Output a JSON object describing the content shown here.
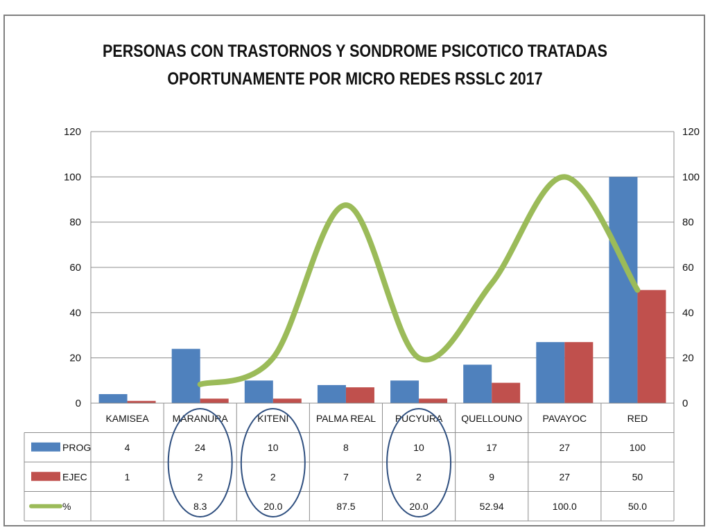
{
  "chart_data": {
    "type": "bar",
    "title": [
      "PERSONAS CON TRASTORNOS Y SONDROME PSICOTICO TRATADAS",
      "OPORTUNAMENTE POR MICRO REDES RSSLC 2017"
    ],
    "categories": [
      "KAMISEA",
      "MARANURA",
      "KITENI",
      "PALMA REAL",
      "PUCYURA",
      "QUELLOUNO",
      "PAVAYOC",
      "RED"
    ],
    "series": [
      {
        "name": "PROG",
        "kind": "bar",
        "color": "#4f81bd",
        "values": [
          4,
          24,
          10,
          8,
          10,
          17,
          27,
          100
        ],
        "labels": [
          "4",
          "24",
          "10",
          "8",
          "10",
          "17",
          "27",
          "100"
        ]
      },
      {
        "name": "EJEC",
        "kind": "bar",
        "color": "#c0504d",
        "values": [
          1,
          2,
          2,
          7,
          2,
          9,
          27,
          50
        ],
        "labels": [
          "1",
          "2",
          "2",
          "7",
          "2",
          "9",
          "27",
          "50"
        ]
      },
      {
        "name": "%",
        "kind": "line",
        "color": "#9bbb59",
        "values": [
          null,
          8.3,
          20.0,
          87.5,
          20.0,
          52.94,
          100.0,
          50.0
        ],
        "labels": [
          "",
          "8.3",
          "20.0",
          "87.5",
          "20.0",
          "52.94",
          "100.0",
          "50.0"
        ]
      }
    ],
    "ylim": [
      0,
      120
    ],
    "yticks": [
      0,
      20,
      40,
      60,
      80,
      100,
      120
    ],
    "y2lim": [
      0,
      120
    ],
    "y2ticks": [
      0,
      20,
      40,
      60,
      80,
      100,
      120
    ],
    "grid": true,
    "legend": "data-table",
    "annotations": {
      "circled_categories": [
        "MARANURA",
        "KITENI",
        "PUCYURA"
      ],
      "circle_color": "#2f4f7f"
    }
  }
}
